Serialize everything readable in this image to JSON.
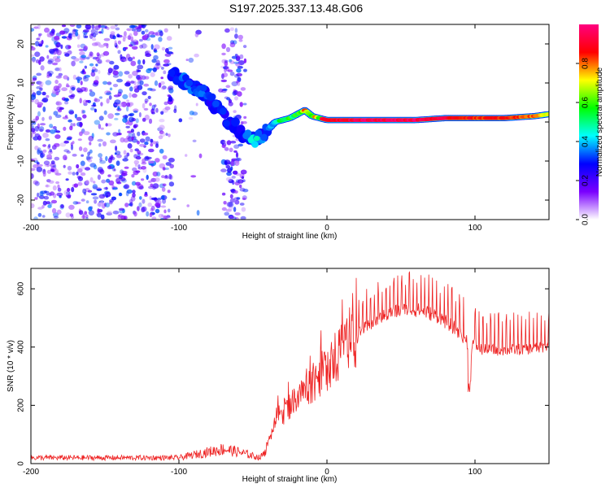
{
  "title": "S197.2025.337.13.48.G06",
  "chart_data": [
    {
      "type": "heatmap",
      "name": "spectrogram",
      "xlabel": "Height of straight line (km)",
      "ylabel": "Frequency (Hz)",
      "xlim": [
        -200,
        150
      ],
      "ylim": [
        -25,
        25
      ],
      "xticks": [
        -200,
        -100,
        0,
        100
      ],
      "yticks": [
        -20,
        -10,
        0,
        10,
        20
      ],
      "colorbar": {
        "label": "Normalized spectral amplitude",
        "range": [
          0,
          1
        ],
        "ticks": [
          "0.0",
          "0.2",
          "0.4",
          "0.6",
          "0.8"
        ],
        "tick_values": [
          0,
          0.2,
          0.4,
          0.6,
          0.8
        ],
        "colors": [
          "#ffffff",
          "#7a00ff",
          "#0000ff",
          "#00ffff",
          "#00ff00",
          "#ffff00",
          "#ff0000",
          "#ff0080"
        ]
      },
      "ridge": {
        "x": [
          -105,
          -95,
          -85,
          -75,
          -65,
          -55,
          -50,
          -45,
          -40,
          -35,
          -30,
          -25,
          -20,
          -15,
          -10,
          -5,
          0,
          20,
          40,
          60,
          80,
          100,
          120,
          140,
          150
        ],
        "frequency": [
          12,
          10,
          8,
          4,
          0,
          -4,
          -4.5,
          -4,
          -2,
          0,
          0.5,
          1,
          2,
          3,
          1.5,
          1,
          0.5,
          0.5,
          0.5,
          0.5,
          1,
          1,
          1,
          1.5,
          2
        ],
        "amplitude": [
          0.3,
          0.3,
          0.3,
          0.3,
          0.25,
          0.3,
          0.45,
          0.35,
          0.3,
          0.45,
          0.5,
          0.55,
          0.6,
          0.7,
          0.65,
          0.7,
          0.9,
          0.95,
          0.95,
          0.95,
          0.9,
          0.85,
          0.85,
          0.8,
          0.7
        ]
      },
      "noise_region": {
        "x_range": [
          -200,
          -55
        ],
        "amplitude_range": [
          0.05,
          0.35
        ]
      }
    },
    {
      "type": "line",
      "name": "snr",
      "xlabel": "Height of straight line (km)",
      "ylabel": "SNR (10 * v/v)",
      "xlim": [
        -200,
        150
      ],
      "ylim": [
        0,
        670
      ],
      "xticks": [
        -200,
        -100,
        0,
        100
      ],
      "yticks": [
        0,
        200,
        400,
        600
      ],
      "color": "#ee2222",
      "envelope": {
        "x": [
          -200,
          -100,
          -85,
          -70,
          -60,
          -45,
          -40,
          -35,
          -25,
          -15,
          -5,
          5,
          15,
          25,
          35,
          45,
          55,
          65,
          75,
          85,
          95,
          105,
          125,
          150
        ],
        "values": [
          20,
          20,
          35,
          50,
          40,
          20,
          60,
          150,
          200,
          250,
          300,
          360,
          410,
          460,
          495,
          520,
          530,
          525,
          505,
          470,
          425,
          390,
          390,
          400
        ]
      },
      "dips": [
        {
          "x": 96,
          "value": 250
        }
      ],
      "peak": {
        "x": 50,
        "value": 670
      }
    }
  ]
}
